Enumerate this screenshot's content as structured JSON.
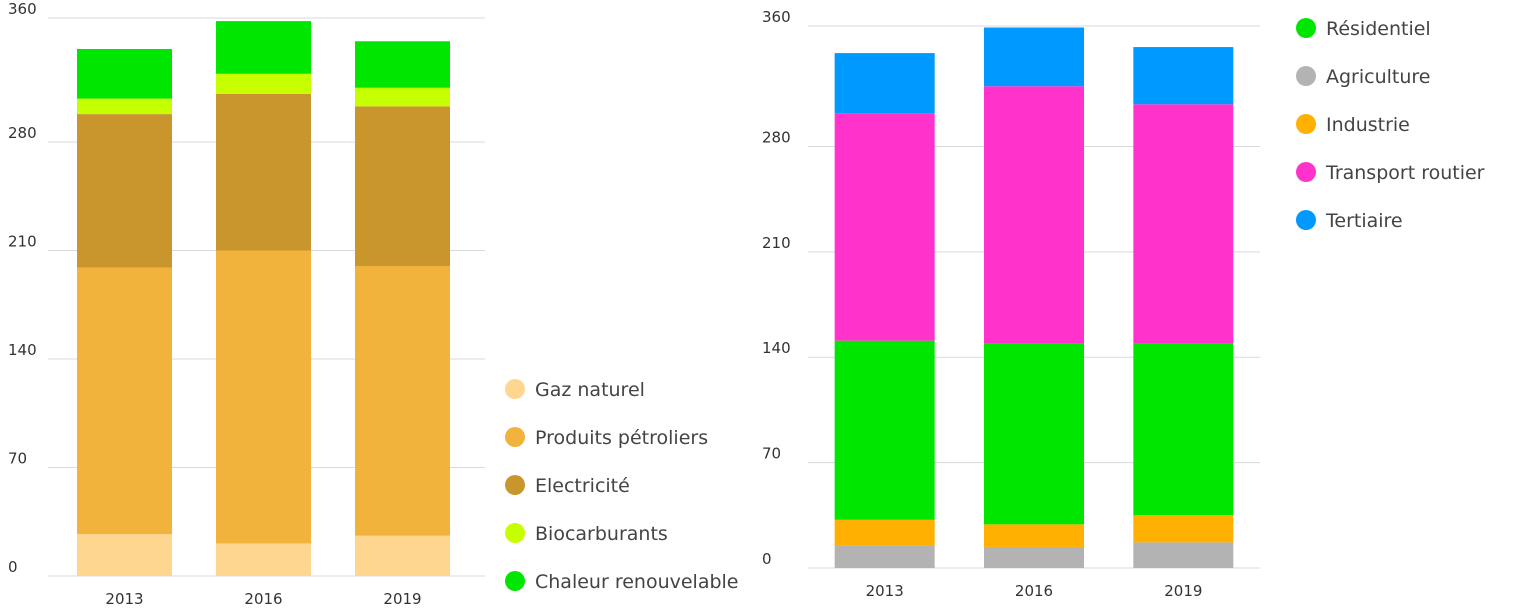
{
  "chart_data": [
    {
      "type": "stacked_bar",
      "categories": [
        "2013",
        "2016",
        "2019"
      ],
      "series": [
        {
          "name": "Gaz naturel",
          "color": "#ffd68f",
          "values": [
            27,
            21,
            26
          ]
        },
        {
          "name": "Produits pétroliers",
          "color": "#f2b33d",
          "values": [
            172,
            189,
            174
          ]
        },
        {
          "name": "Electricité",
          "color": "#c9962e",
          "values": [
            99,
            101,
            103
          ]
        },
        {
          "name": "Biocarburants",
          "color": "#c6ff00",
          "values": [
            10,
            13,
            12
          ]
        },
        {
          "name": "Chaleur renouvelable",
          "color": "#00e600",
          "values": [
            32,
            34,
            30
          ]
        }
      ],
      "ylim": [
        0,
        360
      ],
      "yticks": [
        0,
        70,
        140,
        210,
        280,
        360
      ],
      "grid": true
    },
    {
      "type": "stacked_bar",
      "categories": [
        "2013",
        "2016",
        "2019"
      ],
      "series": [
        {
          "name": "Résidentiel",
          "color": "#00e600",
          "values": [
            119,
            120,
            114
          ]
        },
        {
          "name": "Agriculture",
          "color": "#b3b3b3",
          "values": [
            15,
            14,
            17
          ]
        },
        {
          "name": "Industrie",
          "color": "#ffb000",
          "values": [
            17,
            15,
            18
          ]
        },
        {
          "name": "Transport routier",
          "color": "#ff33cc",
          "values": [
            151,
            171,
            159
          ]
        },
        {
          "name": "Tertiaire",
          "color": "#0099ff",
          "values": [
            40,
            39,
            38
          ]
        }
      ],
      "stack_order": [
        1,
        2,
        0,
        3,
        4
      ],
      "ylim": [
        0,
        360
      ],
      "yticks": [
        0,
        70,
        140,
        210,
        280,
        360
      ],
      "grid": true
    }
  ]
}
